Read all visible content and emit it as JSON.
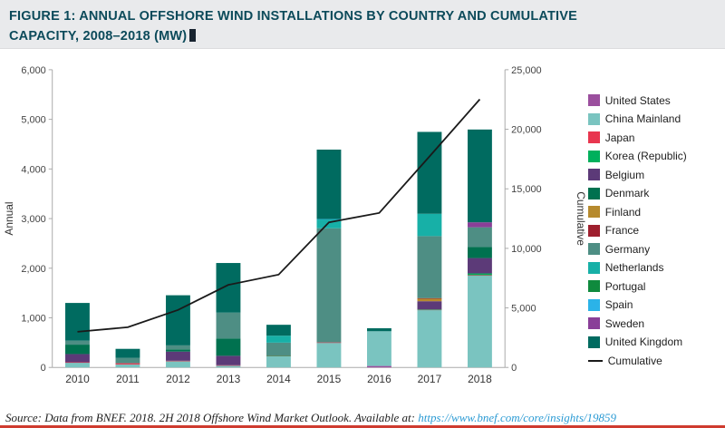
{
  "header": {
    "title_line1": "FIGURE 1: ANNUAL OFFSHORE WIND INSTALLATIONS BY COUNTRY AND CUMULATIVE",
    "title_line2": "CAPACITY, 2008–2018 (MW)"
  },
  "source": {
    "prefix": "Source: Data from BNEF. 2018. ",
    "italic_title": "2H 2018 Offshore Wind Market Outlook",
    "middle": ". Available at: ",
    "link": "https://www.bnef.com/core/insights/19859"
  },
  "chart_data": {
    "type": "bar",
    "subtype": "stacked-bars-with-cumulative-line",
    "categories": [
      "2010",
      "2011",
      "2012",
      "2013",
      "2014",
      "2015",
      "2016",
      "2017",
      "2018"
    ],
    "series": [
      {
        "name": "United States",
        "color": "#9b4f9e",
        "values": [
          0,
          0,
          0,
          0,
          0,
          0,
          30,
          0,
          0
        ]
      },
      {
        "name": "China Mainland",
        "color": "#7ac4c0",
        "values": [
          100,
          60,
          130,
          40,
          230,
          500,
          700,
          1160,
          1850
        ]
      },
      {
        "name": "Japan",
        "color": "#e8364f",
        "values": [
          5,
          25,
          5,
          5,
          5,
          5,
          0,
          5,
          10
        ]
      },
      {
        "name": "Korea (Republic)",
        "color": "#00b05c",
        "values": [
          0,
          0,
          0,
          0,
          5,
          0,
          0,
          5,
          35
        ]
      },
      {
        "name": "Belgium",
        "color": "#5c3a78",
        "values": [
          165,
          0,
          185,
          190,
          0,
          0,
          0,
          165,
          310
        ]
      },
      {
        "name": "Denmark",
        "color": "#00714f",
        "values": [
          190,
          0,
          45,
          350,
          0,
          0,
          0,
          0,
          220
        ]
      },
      {
        "name": "Finland",
        "color": "#b68a2e",
        "values": [
          0,
          0,
          0,
          0,
          0,
          0,
          0,
          60,
          0
        ]
      },
      {
        "name": "France",
        "color": "#9e1f2e",
        "values": [
          0,
          0,
          0,
          0,
          0,
          0,
          0,
          2,
          0
        ]
      },
      {
        "name": "Germany",
        "color": "#4e8e84",
        "values": [
          80,
          110,
          80,
          520,
          260,
          2300,
          0,
          1250,
          400
        ]
      },
      {
        "name": "Netherlands",
        "color": "#17b0a7",
        "values": [
          0,
          0,
          0,
          0,
          140,
          180,
          0,
          450,
          0
        ]
      },
      {
        "name": "Portugal",
        "color": "#0f8a3d",
        "values": [
          0,
          0,
          0,
          0,
          0,
          0,
          0,
          0,
          0
        ]
      },
      {
        "name": "Spain",
        "color": "#2bb3e8",
        "values": [
          0,
          0,
          0,
          0,
          0,
          5,
          0,
          0,
          0
        ]
      },
      {
        "name": "Sweden",
        "color": "#8a3f98",
        "values": [
          0,
          0,
          0,
          0,
          0,
          0,
          0,
          0,
          100
        ]
      },
      {
        "name": "United Kingdom",
        "color": "#006b60",
        "values": [
          760,
          180,
          1010,
          1000,
          220,
          1400,
          60,
          1650,
          1870
        ]
      }
    ],
    "line": {
      "name": "Cumulative",
      "color": "#1a1a1a",
      "values": [
        3000,
        3375,
        4830,
        6935,
        7795,
        12185,
        12975,
        17720,
        22515
      ]
    },
    "left_axis": {
      "label": "Annual",
      "min": 0,
      "max": 6000,
      "ticks": [
        0,
        1000,
        2000,
        3000,
        4000,
        5000,
        6000
      ]
    },
    "right_axis": {
      "label": "Cumulative",
      "min": 0,
      "max": 25000,
      "ticks": [
        0,
        5000,
        10000,
        15000,
        20000,
        25000
      ]
    },
    "grid": false,
    "legend_position": "right"
  }
}
